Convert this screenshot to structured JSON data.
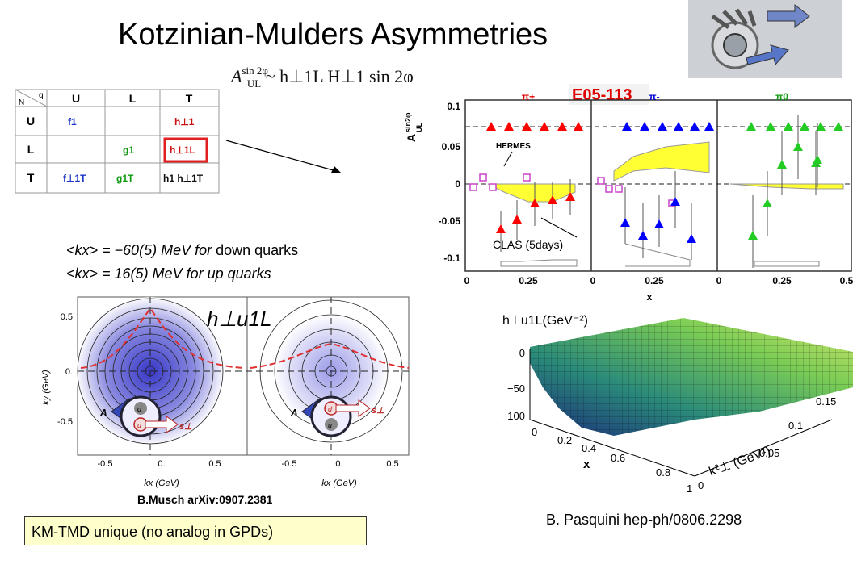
{
  "title": "Kotzinian-Mulders Asymmetries",
  "formula": {
    "lhs": "A",
    "lhs_sup": "sin 2φ",
    "lhs_sub": "UL",
    "rhs": "~ h⊥1L H⊥1 sin 2φ"
  },
  "tmd_table": {
    "corner_top": "q",
    "corner_bottom": "N",
    "col_headers": [
      "U",
      "L",
      "T"
    ],
    "row_headers": [
      "U",
      "L",
      "T"
    ],
    "cells": [
      [
        "f1",
        "",
        "h⊥1"
      ],
      [
        "",
        "g1",
        "h⊥1L"
      ],
      [
        "f⊥1T",
        "g1T",
        "h1  h⊥1T"
      ]
    ]
  },
  "avg_lines": {
    "line1_value": "<kx> = −60(5) MeV for ",
    "line1_suffix": "down quarks",
    "line2": "<kx> = 16(5) MeV for up quarks"
  },
  "e05_plot": {
    "experiment": "E05-113",
    "panels": [
      "π+",
      "π-",
      "π0"
    ],
    "ylabel": "A",
    "ylabel_sup": "sin2φ",
    "ylabel_sub": "UL",
    "xlabel": "x",
    "yticks": [
      "0.1",
      "0.05",
      "0",
      "-0.05",
      "-0.1"
    ],
    "xticks": [
      "0",
      "0.25",
      "0",
      "0.25",
      "0",
      "0.25",
      "0.5"
    ],
    "annotation_hermes": "HERMES",
    "annotation_clas": "CLAS (5days)",
    "colors": {
      "pi_plus": "#ff0000",
      "pi_minus": "#0000ff",
      "pi_zero": "#22cc22",
      "band": "#ffff33",
      "hermes": "#cc44cc"
    }
  },
  "contour_plot": {
    "ylabel": "ky (GeV)",
    "xlabel": "kx (GeV)",
    "label": "h⊥u1L",
    "yticks": [
      "0.5",
      "0.",
      "-0.5"
    ],
    "xticks_left": [
      "-0.5",
      "0.",
      "0.5"
    ],
    "xticks_right": [
      "-0.5",
      "0.",
      "0.5"
    ],
    "diagram_labels": {
      "lambda": "Λ",
      "d": "d",
      "u": "u",
      "s": "s⊥"
    }
  },
  "musch_ref": "B.Musch arXiv:0907.2381",
  "km_box": "KM-TMD unique  (no analog in GPDs)",
  "surface_plot": {
    "zlabel": "h⊥u1L(GeV⁻²)",
    "xlabel": "x",
    "klabel": "k²⊥ (GeV²)",
    "zticks": [
      "0",
      "−50",
      "−100"
    ],
    "xticks": [
      "0",
      "0.2",
      "0.4",
      "0.6",
      "0.8",
      "1"
    ],
    "kticks": [
      "0",
      "0.05",
      "0.1",
      "0.15"
    ]
  },
  "pasquini_ref": "B. Pasquini hep-ph/0806.2298"
}
